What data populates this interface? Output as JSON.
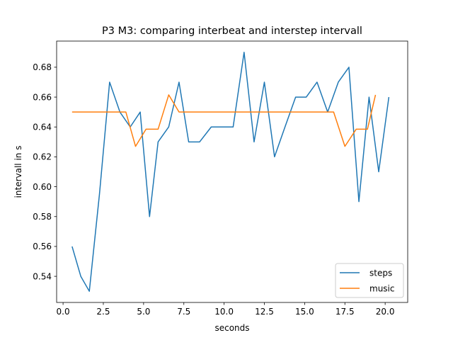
{
  "chart_data": {
    "type": "line",
    "title": "P3 M3: comparing interbeat and interstep intervall",
    "xlabel": "seconds",
    "ylabel": "intervall in s",
    "xlim": [
      -0.4,
      21.4
    ],
    "ylim": [
      0.5225,
      0.6975
    ],
    "xticks": [
      0.0,
      2.5,
      5.0,
      7.5,
      10.0,
      12.5,
      15.0,
      17.5,
      20.0
    ],
    "xtick_labels": [
      "0.0",
      "2.5",
      "5.0",
      "7.5",
      "10.0",
      "12.5",
      "15.0",
      "17.5",
      "20.0"
    ],
    "yticks": [
      0.54,
      0.56,
      0.58,
      0.6,
      0.62,
      0.64,
      0.66,
      0.68
    ],
    "ytick_labels": [
      "0.54",
      "0.56",
      "0.58",
      "0.60",
      "0.62",
      "0.64",
      "0.66",
      "0.68"
    ],
    "grid": false,
    "legend_position": "lower-right",
    "series": [
      {
        "name": "steps",
        "color": "#1f77b4",
        "x": [
          0.56,
          1.1,
          1.63,
          2.26,
          2.89,
          3.53,
          4.17,
          4.79,
          5.37,
          5.9,
          6.56,
          7.2,
          7.8,
          8.48,
          9.2,
          9.84,
          10.56,
          11.24,
          11.86,
          12.5,
          13.13,
          13.78,
          14.44,
          15.1,
          15.77,
          16.43,
          17.09,
          17.75,
          18.37,
          19.0,
          19.6,
          20.23
        ],
        "y": [
          0.56,
          0.54,
          0.53,
          0.595,
          0.67,
          0.65,
          0.64,
          0.65,
          0.58,
          0.63,
          0.64,
          0.67,
          0.63,
          0.63,
          0.64,
          0.64,
          0.64,
          0.69,
          0.63,
          0.67,
          0.62,
          0.64,
          0.66,
          0.66,
          0.67,
          0.65,
          0.67,
          0.68,
          0.59,
          0.66,
          0.61,
          0.66
        ]
      },
      {
        "name": "music",
        "color": "#ff7f0e",
        "x": [
          0.56,
          3.9,
          4.5,
          5.15,
          5.9,
          6.56,
          7.2,
          16.8,
          17.5,
          18.2,
          18.9,
          19.4
        ],
        "y": [
          0.65,
          0.65,
          0.627,
          0.6385,
          0.6385,
          0.6615,
          0.65,
          0.65,
          0.627,
          0.6385,
          0.6385,
          0.6615
        ]
      }
    ]
  }
}
